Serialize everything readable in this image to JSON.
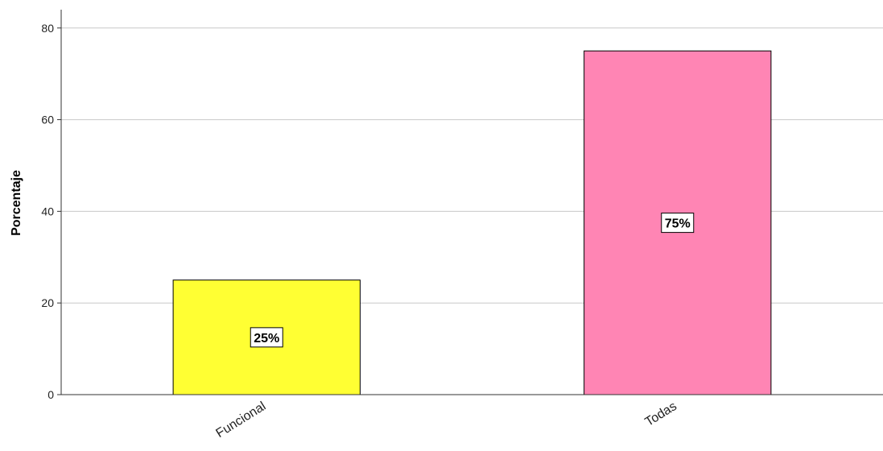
{
  "chart_data": {
    "type": "bar",
    "title": "",
    "xlabel": "",
    "ylabel": "Porcentaje",
    "categories": [
      "Funcional",
      "Todas"
    ],
    "values": [
      25,
      75
    ],
    "data_labels": [
      "25%",
      "75%"
    ],
    "colors": [
      "#ffff33",
      "#ff85b4"
    ],
    "ylim": [
      0,
      84
    ],
    "yticks": [
      0,
      20,
      40,
      60,
      80
    ],
    "grid": true,
    "legend": "none"
  }
}
